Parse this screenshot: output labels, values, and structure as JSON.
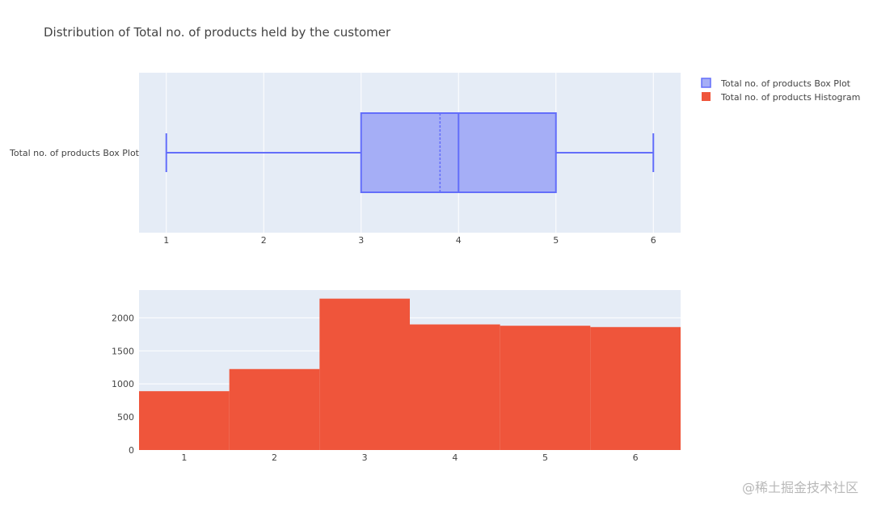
{
  "chart_data": [
    {
      "type": "box",
      "title": "Distribution of Total no. of products held by the customer",
      "category_label": "Total no. of products Box Plot",
      "orientation": "horizontal",
      "stats": {
        "min": 1,
        "q1": 3,
        "median": 4,
        "mean": 3.81,
        "q3": 5,
        "max": 6
      },
      "xlim": [
        0.72,
        6.28
      ],
      "xticks": [
        1,
        2,
        3,
        4,
        5,
        6
      ],
      "grid": true,
      "colors": {
        "box_fill": "#a5aef6",
        "box_line": "#636efa",
        "plot_bg": "#e5ecf6"
      }
    },
    {
      "type": "histogram",
      "categories": [
        1,
        2,
        3,
        4,
        5,
        6
      ],
      "values": [
        890,
        1225,
        2290,
        1900,
        1880,
        1860
      ],
      "xlim": [
        0.5,
        6.5
      ],
      "ylim": [
        0,
        2420
      ],
      "xticks": [
        1,
        2,
        3,
        4,
        5,
        6
      ],
      "yticks": [
        0,
        500,
        1000,
        1500,
        2000
      ],
      "grid": true,
      "colors": {
        "bar": "#ef553b",
        "plot_bg": "#e5ecf6"
      }
    }
  ],
  "legend": {
    "position": "top-right",
    "items": [
      {
        "label": "Total no. of products Box Plot",
        "color": "#a5aef6",
        "border": "#636efa"
      },
      {
        "label": "Total no. of products Histogram",
        "color": "#ef553b",
        "border": "#ef553b"
      }
    ]
  },
  "watermark": "@稀土掘金技术社区"
}
